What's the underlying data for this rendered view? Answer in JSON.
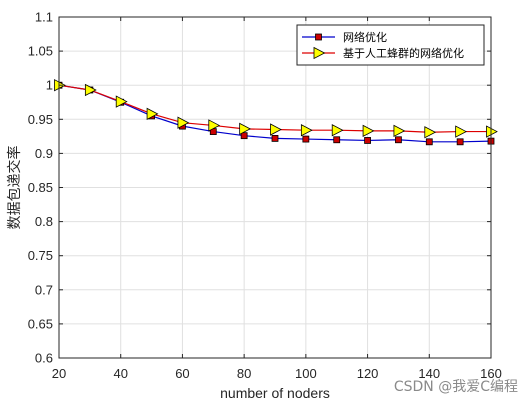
{
  "chart_data": {
    "type": "line",
    "x": [
      20,
      30,
      40,
      50,
      60,
      70,
      80,
      90,
      100,
      110,
      120,
      130,
      140,
      150,
      160
    ],
    "series": [
      {
        "name": "网络优化",
        "color": "#0000cc",
        "marker": "square",
        "marker_color": "#cc0000",
        "values": [
          1.0,
          0.993,
          0.975,
          0.955,
          0.94,
          0.932,
          0.926,
          0.922,
          0.921,
          0.92,
          0.919,
          0.92,
          0.917,
          0.917,
          0.918
        ]
      },
      {
        "name": "基于人工蜂群的网络优化",
        "color": "#dd0000",
        "marker": "triangle-right",
        "marker_color": "#ffff00",
        "values": [
          1.0,
          0.993,
          0.976,
          0.958,
          0.945,
          0.941,
          0.936,
          0.935,
          0.934,
          0.934,
          0.933,
          0.933,
          0.931,
          0.932,
          0.932
        ]
      }
    ],
    "xlabel": "number of noders",
    "ylabel": "数据包递交率",
    "xlim": [
      20,
      160
    ],
    "ylim": [
      0.6,
      1.1
    ],
    "xticks": [
      "20",
      "40",
      "60",
      "80",
      "100",
      "120",
      "140",
      "160"
    ],
    "yticks": [
      "0.6",
      "0.65",
      "0.7",
      "0.75",
      "0.8",
      "0.85",
      "0.9",
      "0.95",
      "1",
      "1.05",
      "1.1"
    ],
    "grid": true,
    "legend_position": "top-right"
  },
  "watermark": "CSDN @我爱C编程"
}
